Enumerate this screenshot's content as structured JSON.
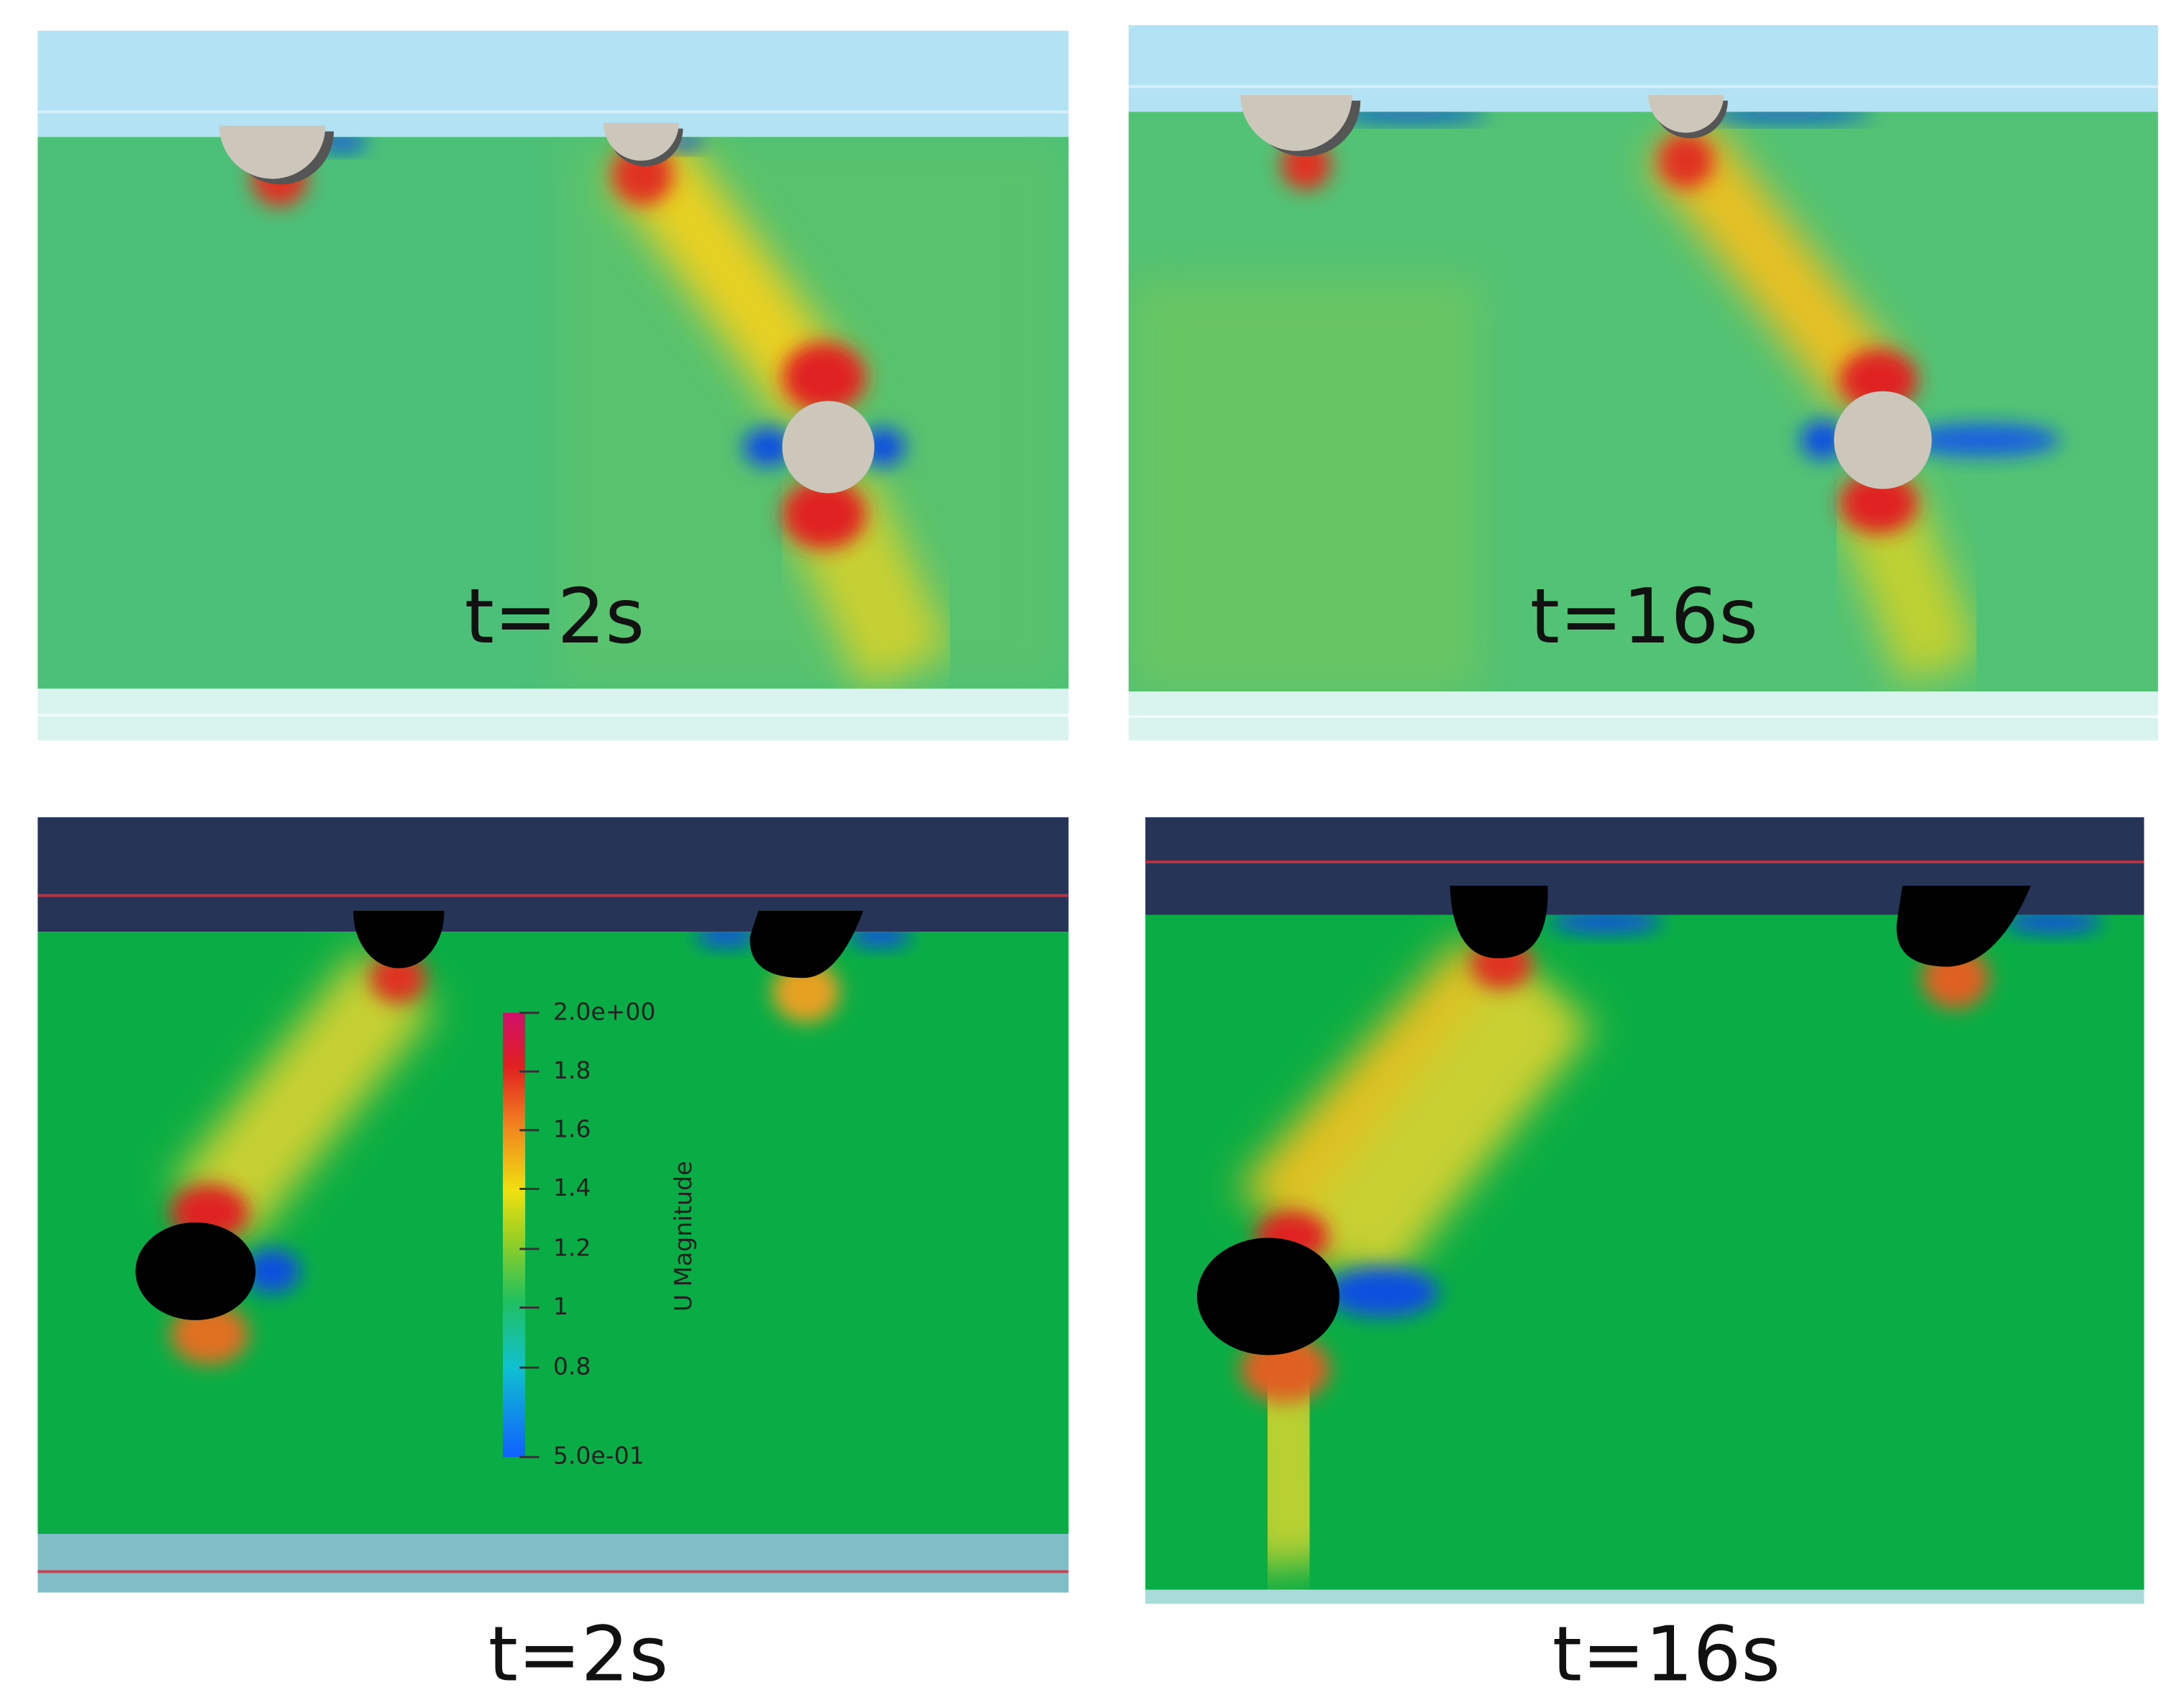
{
  "panels": [
    {
      "label": "t=2s"
    },
    {
      "label": "t=16s"
    }
  ],
  "captions": [
    "t=2s",
    "t=16s"
  ],
  "colorbar": {
    "title": "U Magnitude",
    "ticks": [
      "2.0e+00",
      "1.8",
      "1.6",
      "1.4",
      "1.2",
      "1",
      "0.8",
      "5.0e-01"
    ]
  }
}
